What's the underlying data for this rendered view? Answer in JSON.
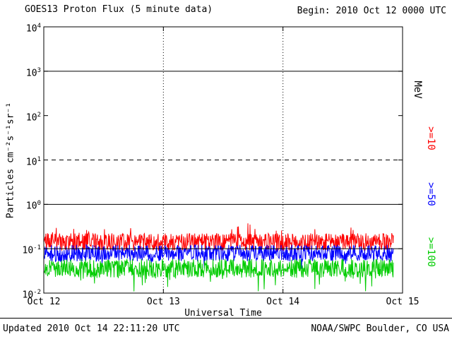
{
  "header": {
    "begin_label": "Begin: 2010 Oct 12 0000 UTC"
  },
  "footer": {
    "updated": "Updated 2010 Oct 14 22:11:20 UTC",
    "credit": "NOAA/SWPC Boulder, CO USA"
  },
  "chart_data": {
    "type": "line",
    "title": "GOES13 Proton Flux (5 minute data)",
    "xlabel": "Universal Time",
    "ylabel": "Particles cm⁻²s⁻¹sr⁻¹",
    "right_axis_label": "MeV",
    "y_scale": "log10",
    "ylim": [
      0.01,
      10000
    ],
    "ylim_exponents": [
      -2,
      4
    ],
    "y_tick_exponents": [
      4,
      3,
      2,
      1,
      0,
      -1,
      -2
    ],
    "y_tick_labels": [
      "10⁴",
      "10³",
      "10²",
      "10¹",
      "10⁰",
      "10⁻¹",
      "10⁻²"
    ],
    "x_ticks": [
      "Oct 12",
      "Oct 13",
      "Oct 14",
      "Oct 15"
    ],
    "x_days_total": 3,
    "data_end_day_fraction": 0.975,
    "grid": {
      "hlines_solid_exponents": [
        3,
        0,
        -1
      ],
      "hlines_dashed_exponents": [
        1
      ],
      "vlines_dotted_days": [
        1,
        2
      ]
    },
    "legend_position": "right-rotated",
    "series": [
      {
        "key": "ge10",
        "label": ">=10",
        "color": "#ff0000",
        "points_per_day": 288,
        "log10_mean": -0.85,
        "log10_jitter": 0.2,
        "excursion_prob": 0.06,
        "excursion_log10": 0.3,
        "approx_flux_mean": 0.14,
        "approx_flux_range": [
          0.08,
          0.4
        ]
      },
      {
        "key": "ge50",
        "label": ">=50",
        "color": "#0000ff",
        "points_per_day": 288,
        "log10_mean": -1.1,
        "log10_jitter": 0.19,
        "excursion_prob": 0.05,
        "excursion_log10": -0.2,
        "approx_flux_mean": 0.08,
        "approx_flux_range": [
          0.05,
          0.14
        ]
      },
      {
        "key": "ge100",
        "label": ">=100",
        "color": "#00cc00",
        "points_per_day": 288,
        "log10_mean": -1.44,
        "log10_jitter": 0.21,
        "excursion_prob": 0.08,
        "excursion_log10": -0.35,
        "approx_flux_mean": 0.036,
        "approx_flux_range": [
          0.012,
          0.065
        ]
      }
    ]
  }
}
